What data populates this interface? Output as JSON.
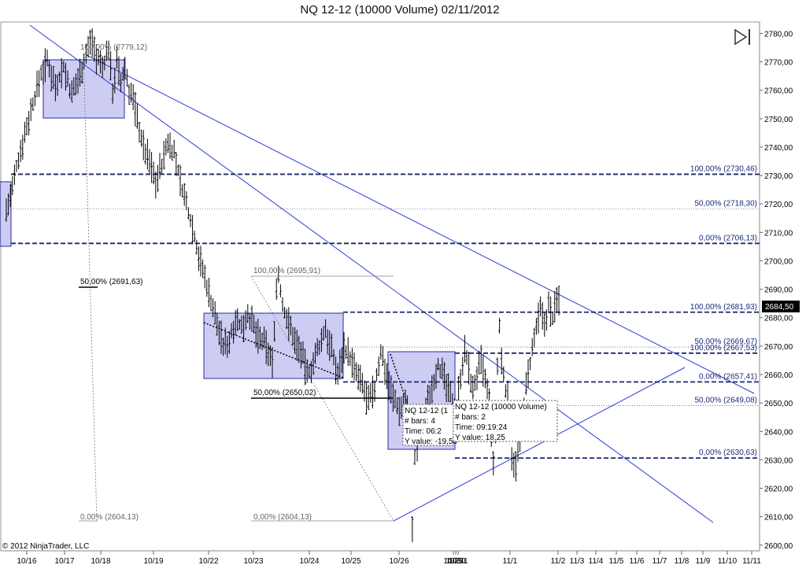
{
  "title": "NQ 12-12 (10000 Volume)  02/11/2012",
  "copyright": "© 2012 NinjaTrader, LLC",
  "last_price_label": "2684,50",
  "chart_data": {
    "type": "line",
    "series_name": "NQ 12-12 (10000 Volume)",
    "y_range": [
      2598,
      2784
    ],
    "y_ticks": [
      "2780,00",
      "2770,00",
      "2760,00",
      "2750,00",
      "2740,00",
      "2730,00",
      "2720,00",
      "2710,00",
      "2700,00",
      "2690,00",
      "2680,00",
      "2670,00",
      "2660,00",
      "2650,00",
      "2640,00",
      "2630,00",
      "2620,00",
      "2610,00",
      "2600,00"
    ],
    "x_ticks": [
      "10/16",
      "10/17",
      "10/18",
      "10/19",
      "10/22",
      "10/23",
      "10/24",
      "10/25",
      "10/26",
      "10/29",
      "10/30",
      "10/31",
      "11/1",
      "11/2",
      "11/3",
      "11/4",
      "11/5",
      "11/6",
      "11/7",
      "11/8",
      "11/9",
      "11/10",
      "11/11"
    ],
    "fib_levels": [
      {
        "label": "100,00% (2730,46)",
        "value": 2730.46
      },
      {
        "label": "50,00% (2718,30)",
        "value": 2718.3
      },
      {
        "label": "0,00% (2706,13)",
        "value": 2706.13
      },
      {
        "label": "100,00% (2681,93)",
        "value": 2681.93
      },
      {
        "label": "50,00% (2669,67)",
        "value": 2669.67
      },
      {
        "label": "100,00% (2667,53)",
        "value": 2667.53
      },
      {
        "label": "0,00% (2657,41)",
        "value": 2657.41
      },
      {
        "label": "50,00% (2649,08)",
        "value": 2649.08
      },
      {
        "label": "0,00% (2630,63)",
        "value": 2630.63
      }
    ],
    "fib_left": [
      {
        "label": "100,00% (2779,12)",
        "value": 2779.12
      },
      {
        "label": "50,00% (2691,63)",
        "value": 2691.63
      },
      {
        "label": "0,00% (2604,13)",
        "value": 2604.13
      }
    ],
    "fib_mid": [
      {
        "label": "100,00% (2695,91)",
        "value": 2695.91
      },
      {
        "label": "50,00% (2650,02)",
        "value": 2650.02
      },
      {
        "label": "0,00% (2604,13)",
        "value": 2604.13
      }
    ],
    "tooltip_1": {
      "line1": "NQ 12-12 (1",
      "line2": "# bars:   4",
      "line3": "Time:     06:2",
      "line4": "Y value: -19,50"
    },
    "tooltip_2": {
      "line1": "NQ 12-12 (10000 Volume)",
      "line2": "# bars:   2",
      "line3": "Time:     09:19:24",
      "line4": "Y value: 18,25"
    },
    "price_path": [
      [
        0,
        2718
      ],
      [
        0.05,
        2720
      ],
      [
        0.15,
        2725
      ],
      [
        0.25,
        2733
      ],
      [
        0.4,
        2742
      ],
      [
        0.55,
        2750
      ],
      [
        0.7,
        2758
      ],
      [
        0.85,
        2766
      ],
      [
        1.0,
        2770
      ],
      [
        1.2,
        2762
      ],
      [
        1.4,
        2768
      ],
      [
        1.6,
        2758
      ],
      [
        1.8,
        2766
      ],
      [
        2.0,
        2775
      ],
      [
        2.1,
        2778
      ],
      [
        2.2,
        2772
      ],
      [
        2.35,
        2768
      ],
      [
        2.5,
        2775
      ],
      [
        2.6,
        2760
      ],
      [
        2.7,
        2770
      ],
      [
        2.8,
        2762
      ],
      [
        2.9,
        2768
      ],
      [
        3.0,
        2760
      ],
      [
        3.1,
        2757
      ],
      [
        3.2,
        2750
      ],
      [
        3.35,
        2740
      ],
      [
        3.5,
        2735
      ],
      [
        3.65,
        2728
      ],
      [
        3.8,
        2734
      ],
      [
        3.95,
        2742
      ],
      [
        4.1,
        2738
      ],
      [
        4.25,
        2728
      ],
      [
        4.4,
        2720
      ],
      [
        4.55,
        2712
      ],
      [
        4.7,
        2702
      ],
      [
        4.85,
        2694
      ],
      [
        5.0,
        2686
      ],
      [
        5.15,
        2678
      ],
      [
        5.3,
        2670
      ],
      [
        5.45,
        2672
      ],
      [
        5.6,
        2680
      ],
      [
        5.75,
        2676
      ],
      [
        5.9,
        2682
      ],
      [
        6.05,
        2676
      ],
      [
        6.2,
        2672
      ],
      [
        6.35,
        2670
      ],
      [
        6.5,
        2664
      ],
      [
        6.6,
        2690
      ],
      [
        6.65,
        2695
      ],
      [
        6.75,
        2684
      ],
      [
        6.9,
        2678
      ],
      [
        7.05,
        2672
      ],
      [
        7.2,
        2668
      ],
      [
        7.35,
        2660
      ],
      [
        7.5,
        2664
      ],
      [
        7.65,
        2670
      ],
      [
        7.8,
        2676
      ],
      [
        7.95,
        2668
      ],
      [
        8.1,
        2660
      ],
      [
        8.25,
        2670
      ],
      [
        8.4,
        2666
      ],
      [
        8.55,
        2660
      ],
      [
        8.7,
        2656
      ],
      [
        8.85,
        2650
      ],
      [
        9.0,
        2655
      ],
      [
        9.15,
        2668
      ],
      [
        9.3,
        2660
      ],
      [
        9.45,
        2652
      ],
      [
        9.6,
        2648
      ],
      [
        9.75,
        2650
      ],
      [
        9.85,
        2644
      ],
      [
        9.92,
        2605
      ],
      [
        9.98,
        2630
      ],
      [
        10.1,
        2640
      ],
      [
        10.25,
        2648
      ],
      [
        10.4,
        2656
      ],
      [
        10.55,
        2664
      ],
      [
        10.7,
        2658
      ],
      [
        10.85,
        2652
      ],
      [
        11.0,
        2648
      ],
      [
        11.1,
        2660
      ],
      [
        11.2,
        2668
      ],
      [
        11.3,
        2662
      ],
      [
        11.4,
        2654
      ],
      [
        11.5,
        2660
      ],
      [
        11.6,
        2664
      ],
      [
        11.7,
        2658
      ],
      [
        11.8,
        2650
      ],
      [
        11.85,
        2638
      ],
      [
        11.9,
        2627
      ],
      [
        11.95,
        2640
      ],
      [
        12.0,
        2662
      ],
      [
        12.05,
        2676
      ],
      [
        12.1,
        2665
      ],
      [
        12.2,
        2655
      ],
      [
        12.3,
        2648
      ],
      [
        12.35,
        2632
      ],
      [
        12.45,
        2628
      ],
      [
        12.55,
        2636
      ],
      [
        12.65,
        2650
      ],
      [
        12.75,
        2660
      ],
      [
        12.85,
        2668
      ],
      [
        12.95,
        2676
      ],
      [
        13.05,
        2682
      ],
      [
        13.15,
        2678
      ],
      [
        13.25,
        2684
      ],
      [
        13.35,
        2680
      ],
      [
        13.45,
        2686
      ],
      [
        13.55,
        2688
      ]
    ]
  }
}
